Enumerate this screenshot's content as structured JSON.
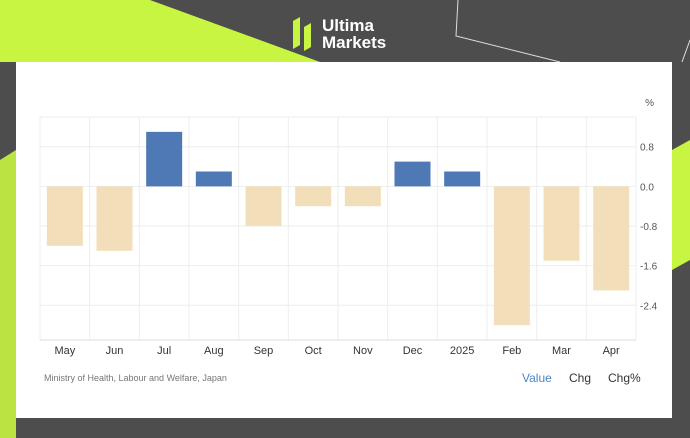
{
  "brand": {
    "name_line1": "Ultima",
    "name_line2": "Markets",
    "logo_icon": "ultima-markets-logo-icon",
    "accent_color": "#c8f542"
  },
  "chart_data": {
    "type": "bar",
    "unit": "%",
    "categories": [
      "May",
      "Jun",
      "Jul",
      "Aug",
      "Sep",
      "Oct",
      "Nov",
      "Dec",
      "2025",
      "Feb",
      "Mar",
      "Apr"
    ],
    "values": [
      -1.2,
      -1.3,
      1.1,
      0.3,
      -0.8,
      -0.4,
      -0.4,
      0.5,
      0.3,
      -2.8,
      -1.5,
      -2.1
    ],
    "ylim": [
      -3.1,
      1.4
    ],
    "yticks": [
      0.8,
      0.0,
      -0.8,
      -1.6,
      -2.4
    ],
    "ytick_labels": [
      "0.8",
      "0.0",
      "-0.8",
      "-1.6",
      "-2.4"
    ],
    "positive_color": "#4f79b5",
    "negative_color": "#f2dfb9",
    "grid": true,
    "source": "Ministry of Health, Labour and Welfare, Japan"
  },
  "tabs": [
    {
      "label": "Value",
      "active": true
    },
    {
      "label": "Chg",
      "active": false
    },
    {
      "label": "Chg%",
      "active": false
    }
  ]
}
